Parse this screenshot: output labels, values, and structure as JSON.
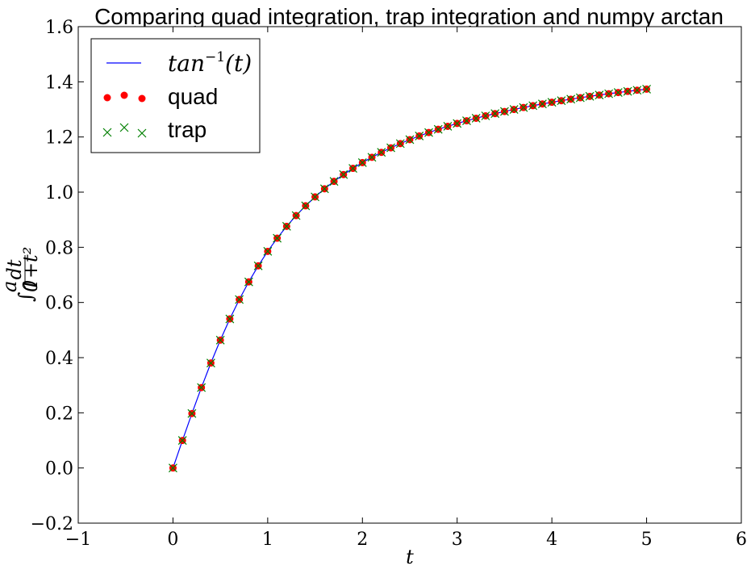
{
  "chart_data": {
    "type": "line",
    "title": "Comparing quad integration, trap integration and numpy arctan",
    "xlabel": "t",
    "ylabel": "∫₀ᵃ dt/(1+t²)",
    "xlim": [
      -1,
      6
    ],
    "ylim": [
      -0.2,
      1.6
    ],
    "xticks": [
      "−1",
      "0",
      "1",
      "2",
      "3",
      "4",
      "5",
      "6"
    ],
    "yticks": [
      "−0.2",
      "0.0",
      "0.2",
      "0.4",
      "0.6",
      "0.8",
      "1.0",
      "1.2",
      "1.4",
      "1.6"
    ],
    "grid": false,
    "legend_position": "top-left",
    "x": [
      0.0,
      0.1,
      0.2,
      0.3,
      0.4,
      0.5,
      0.6,
      0.7,
      0.8,
      0.9,
      1.0,
      1.1,
      1.2,
      1.3,
      1.4,
      1.5,
      1.6,
      1.7,
      1.8,
      1.9,
      2.0,
      2.1,
      2.2,
      2.3,
      2.4,
      2.5,
      2.6,
      2.7,
      2.8,
      2.9,
      3.0,
      3.1,
      3.2,
      3.3,
      3.4,
      3.5,
      3.6,
      3.7,
      3.8,
      3.9,
      4.0,
      4.1,
      4.2,
      4.3,
      4.4,
      4.5,
      4.6,
      4.7,
      4.8,
      4.9,
      5.0
    ],
    "series": [
      {
        "name": "tan⁻¹(t)",
        "kind": "line",
        "color": "#0000ff",
        "values": [
          0.0,
          0.0997,
          0.1974,
          0.2915,
          0.3805,
          0.4636,
          0.5404,
          0.6107,
          0.6747,
          0.7328,
          0.7854,
          0.833,
          0.8761,
          0.9151,
          0.9505,
          0.9828,
          1.0122,
          1.0391,
          1.0637,
          1.0863,
          1.1071,
          1.1264,
          1.1442,
          1.1607,
          1.176,
          1.1903,
          1.2036,
          1.2161,
          1.2278,
          1.2387,
          1.249,
          1.2588,
          1.2679,
          1.2766,
          1.2847,
          1.2925,
          1.2998,
          1.3068,
          1.3135,
          1.3198,
          1.3258,
          1.3316,
          1.3371,
          1.3423,
          1.3473,
          1.3521,
          1.3567,
          1.3612,
          1.3654,
          1.3695,
          1.3734
        ]
      },
      {
        "name": "quad",
        "kind": "markers-dot",
        "color": "#ff0000",
        "values": [
          0.0,
          0.0997,
          0.1974,
          0.2915,
          0.3805,
          0.4636,
          0.5404,
          0.6107,
          0.6747,
          0.7328,
          0.7854,
          0.833,
          0.8761,
          0.9151,
          0.9505,
          0.9828,
          1.0122,
          1.0391,
          1.0637,
          1.0863,
          1.1071,
          1.1264,
          1.1442,
          1.1607,
          1.176,
          1.1903,
          1.2036,
          1.2161,
          1.2278,
          1.2387,
          1.249,
          1.2588,
          1.2679,
          1.2766,
          1.2847,
          1.2925,
          1.2998,
          1.3068,
          1.3135,
          1.3198,
          1.3258,
          1.3316,
          1.3371,
          1.3423,
          1.3473,
          1.3521,
          1.3567,
          1.3612,
          1.3654,
          1.3695,
          1.3734
        ]
      },
      {
        "name": "trap",
        "kind": "markers-x",
        "color": "#008000",
        "values": [
          0.0,
          0.0997,
          0.1974,
          0.2915,
          0.3805,
          0.4636,
          0.5404,
          0.6107,
          0.6747,
          0.7328,
          0.7854,
          0.833,
          0.8761,
          0.9151,
          0.9505,
          0.9828,
          1.0122,
          1.0391,
          1.0637,
          1.0863,
          1.1071,
          1.1264,
          1.1442,
          1.1607,
          1.176,
          1.1903,
          1.2036,
          1.2161,
          1.2278,
          1.2387,
          1.249,
          1.2588,
          1.2679,
          1.2766,
          1.2847,
          1.2925,
          1.2998,
          1.3068,
          1.3135,
          1.3198,
          1.3258,
          1.3316,
          1.3371,
          1.3423,
          1.3473,
          1.3521,
          1.3567,
          1.3612,
          1.3654,
          1.3695,
          1.3734
        ]
      }
    ]
  },
  "legend": {
    "line_label_base": "tan",
    "line_label_sup": "−1",
    "line_label_arg": "(t)",
    "quad_label": "quad",
    "trap_label": "trap"
  }
}
